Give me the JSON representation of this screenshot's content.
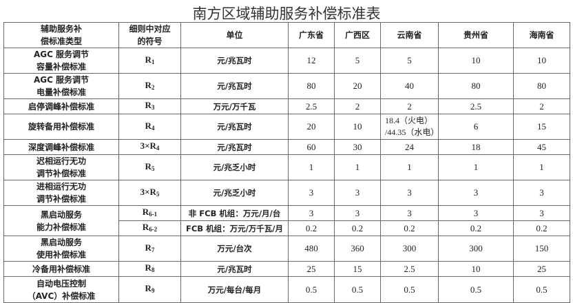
{
  "title": "南方区域辅助服务补偿标准表",
  "headers": [
    "辅助服务补偿标准类型",
    "细则中对应的符号",
    "单位",
    "广东省",
    "广西区",
    "云南省",
    "贵州省",
    "海南省"
  ],
  "header_lines": {
    "type": [
      "辅助服务补",
      "偿标准类型"
    ],
    "symbol": [
      "细则中对应",
      "的符号"
    ]
  },
  "rows": [
    {
      "type": [
        "AGC 服务调节",
        "容量补偿标准"
      ],
      "symbol": "R",
      "sub": "1",
      "unit": "元/兆瓦时",
      "values": [
        "12",
        "5",
        "5",
        "10",
        "10"
      ]
    },
    {
      "type": [
        "AGC 服务调节",
        "电量补偿标准"
      ],
      "symbol": "R",
      "sub": "2",
      "unit": "元/兆瓦时",
      "values": [
        "80",
        "20",
        "40",
        "80",
        "80"
      ]
    },
    {
      "type": [
        "启停调峰补偿标准"
      ],
      "symbol": "R",
      "sub": "3",
      "unit": "万元/万千瓦",
      "values": [
        "2.5",
        "2",
        "2",
        "2.5",
        "2"
      ]
    },
    {
      "type": [
        "旋转备用补偿标准"
      ],
      "symbol": "R",
      "sub": "4",
      "unit": "元/兆瓦时",
      "values": [
        "20",
        "10",
        "18.4（火电）/44.35（水电）",
        "6",
        "15"
      ],
      "yunnan_lines": [
        "18.4（火电）",
        "/44.35（水电）"
      ]
    },
    {
      "type": [
        "深度调峰补偿标准"
      ],
      "symbol": "3×R",
      "sub": "4",
      "unit": "元/兆瓦时",
      "values": [
        "60",
        "30",
        "24",
        "18",
        "45"
      ]
    },
    {
      "type": [
        "迟相运行无功",
        "调节补偿标准"
      ],
      "symbol": "R",
      "sub": "5",
      "unit": "元/兆乏小时",
      "values": [
        "1",
        "1",
        "1",
        "1",
        "1"
      ]
    },
    {
      "type": [
        "进相运行无功",
        "调节补偿标准"
      ],
      "symbol": "3×R",
      "sub": "5",
      "unit": "元/兆乏小时",
      "values": [
        "3",
        "3",
        "3",
        "3",
        "3"
      ]
    },
    {
      "type": [
        "黑启动服务",
        "能力补偿标准"
      ],
      "symbol": "R",
      "sub": "6-1",
      "unit": "非 FCB 机组：万元/月/台",
      "values": [
        "3",
        "3",
        "3",
        "3",
        "3"
      ]
    },
    {
      "symbol": "R",
      "sub": "6-2",
      "unit": "FCB 机组：万元/万千瓦/月",
      "values": [
        "0.2",
        "0.2",
        "0.2",
        "0.2",
        "0.2"
      ]
    },
    {
      "type": [
        "黑启动服务",
        "使用补偿标准"
      ],
      "symbol": "R",
      "sub": "7",
      "unit": "万元/台次",
      "values": [
        "480",
        "360",
        "300",
        "300",
        "150"
      ]
    },
    {
      "type": [
        "冷备用补偿标准"
      ],
      "symbol": "R",
      "sub": "8",
      "unit": "元/兆瓦时",
      "values": [
        "25",
        "15",
        "2.5",
        "10",
        "25"
      ]
    },
    {
      "type": [
        "自动电压控制",
        "（AVC）补偿标准"
      ],
      "symbol": "R",
      "sub": "9",
      "unit": "万元/每台/每月",
      "values": [
        "0.5",
        "0.5",
        "0.5",
        "0.5",
        "0.5"
      ]
    }
  ]
}
